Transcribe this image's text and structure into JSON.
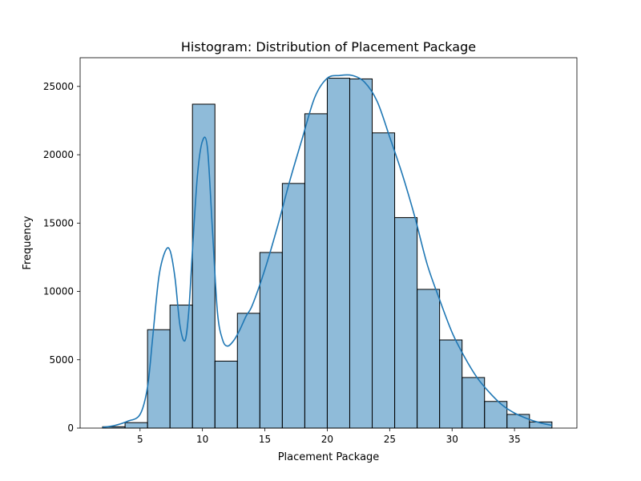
{
  "chart_data": {
    "type": "bar",
    "title": "Histogram: Distribution of Placement Package",
    "xlabel": "Placement Package",
    "ylabel": "Frequency",
    "xlim": [
      0.2,
      40.0
    ],
    "ylim": [
      0,
      27100
    ],
    "xticks": [
      5,
      10,
      15,
      20,
      25,
      30,
      35
    ],
    "xtick_labels": [
      "5",
      "10",
      "15",
      "20",
      "25",
      "30",
      "35"
    ],
    "yticks": [
      0,
      5000,
      10000,
      15000,
      20000,
      25000
    ],
    "ytick_labels": [
      "0",
      "5000",
      "10000",
      "15000",
      "20000",
      "25000"
    ],
    "bar_color": "#1f77b4",
    "bar_alpha": 0.5,
    "line_color": "#1f77b4",
    "bins": [
      {
        "x0": 2.0,
        "x1": 3.8,
        "value": 100
      },
      {
        "x0": 3.8,
        "x1": 5.6,
        "value": 400
      },
      {
        "x0": 5.6,
        "x1": 7.4,
        "value": 7200
      },
      {
        "x0": 7.4,
        "x1": 9.2,
        "value": 9000
      },
      {
        "x0": 9.2,
        "x1": 11.0,
        "value": 23700
      },
      {
        "x0": 11.0,
        "x1": 12.8,
        "value": 4900
      },
      {
        "x0": 12.8,
        "x1": 14.6,
        "value": 8400
      },
      {
        "x0": 14.6,
        "x1": 16.4,
        "value": 12850
      },
      {
        "x0": 16.4,
        "x1": 18.2,
        "value": 17900
      },
      {
        "x0": 18.2,
        "x1": 20.0,
        "value": 23000
      },
      {
        "x0": 20.0,
        "x1": 21.8,
        "value": 25600
      },
      {
        "x0": 21.8,
        "x1": 23.6,
        "value": 25550
      },
      {
        "x0": 23.6,
        "x1": 25.4,
        "value": 21600
      },
      {
        "x0": 25.4,
        "x1": 27.2,
        "value": 15400
      },
      {
        "x0": 27.2,
        "x1": 29.0,
        "value": 10150
      },
      {
        "x0": 29.0,
        "x1": 30.8,
        "value": 6450
      },
      {
        "x0": 30.8,
        "x1": 32.6,
        "value": 3700
      },
      {
        "x0": 32.6,
        "x1": 34.4,
        "value": 1950
      },
      {
        "x0": 34.4,
        "x1": 36.2,
        "value": 1000
      },
      {
        "x0": 36.2,
        "x1": 38.0,
        "value": 450
      }
    ],
    "kde": {
      "x": [
        2.0,
        3.0,
        4.0,
        5.0,
        5.6,
        6.0,
        6.5,
        7.0,
        7.4,
        7.8,
        8.2,
        8.6,
        8.9,
        9.2,
        9.6,
        10.0,
        10.4,
        10.8,
        11.2,
        11.6,
        12.0,
        12.5,
        13.0,
        13.5,
        14.0,
        15.0,
        16.0,
        17.0,
        18.0,
        19.0,
        20.0,
        21.0,
        22.0,
        23.0,
        24.0,
        25.0,
        26.0,
        27.0,
        28.0,
        29.0,
        30.0,
        31.0,
        32.0,
        33.0,
        34.0,
        35.0,
        36.0,
        37.0,
        38.0
      ],
      "y": [
        50,
        200,
        500,
        1000,
        3000,
        6500,
        11000,
        12900,
        13000,
        11000,
        7500,
        6400,
        8500,
        13000,
        18500,
        21000,
        20500,
        14500,
        8500,
        6500,
        6000,
        6400,
        7200,
        8200,
        9000,
        11600,
        14700,
        18100,
        21200,
        24200,
        25600,
        25800,
        25800,
        25300,
        23900,
        21300,
        18600,
        15500,
        12000,
        9400,
        7000,
        5200,
        3700,
        2600,
        1700,
        1100,
        700,
        400,
        200
      ]
    }
  }
}
